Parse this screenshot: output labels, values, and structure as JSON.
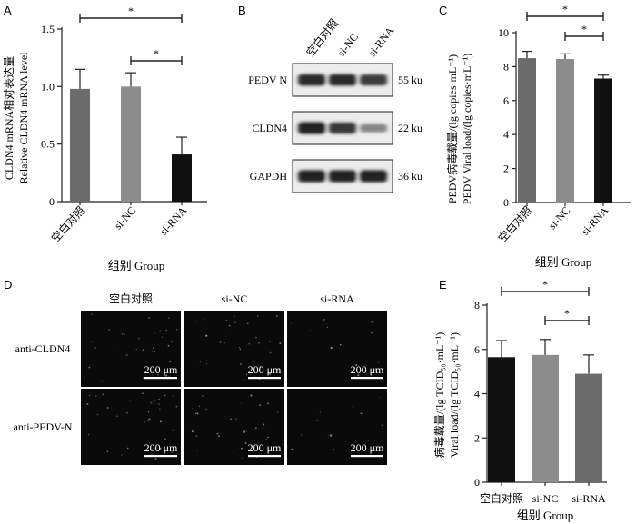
{
  "figure": {
    "panels": [
      "A",
      "B",
      "C",
      "D",
      "E"
    ]
  },
  "panel_a": {
    "ylabel_cn": "CLDN4 mRNA相对表达量",
    "ylabel_en": "Relative CLDN4 mRNA level",
    "xlabel": "组别 Group"
  },
  "panel_b": {
    "lanes": [
      "空白对照",
      "si-NC",
      "si-RNA"
    ],
    "rows": [
      {
        "label": "PEDV N",
        "size": "55 ku",
        "intensity": [
          0.85,
          0.85,
          0.78
        ]
      },
      {
        "label": "CLDN4",
        "size": "22 ku",
        "intensity": [
          0.9,
          0.8,
          0.45
        ]
      },
      {
        "label": "GAPDH",
        "size": "36 ku",
        "intensity": [
          0.9,
          0.9,
          0.9
        ]
      }
    ]
  },
  "panel_c": {
    "ylabel_cn": "PEDV病毒载量/(lg copies·mL⁻¹)",
    "ylabel_en": "PEDV Viral load/(lg copies·mL⁻¹)",
    "xlabel": "组别 Group"
  },
  "panel_d": {
    "columns": [
      "空白对照",
      "si-NC",
      "si-RNA"
    ],
    "rows": [
      "anti-CLDN4",
      "anti-PEDV-N"
    ],
    "scale_bar": "200 μm"
  },
  "panel_e": {
    "ylabel_cn": "病毒载量/(lg TCID₅₀·mL⁻¹)",
    "ylabel_en": "Viral load/(lg TCID₅₀·mL⁻¹)",
    "xlabel": "组别 Group"
  },
  "chart_data": [
    {
      "panel": "A",
      "type": "bar",
      "categories": [
        "空白对照",
        "si-NC",
        "si-RNA"
      ],
      "values": [
        0.98,
        1.0,
        0.41
      ],
      "errors": [
        0.17,
        0.12,
        0.15
      ],
      "colors": [
        "#6b6b6b",
        "#8c8c8c",
        "#111111"
      ],
      "ylim": [
        0,
        1.5
      ],
      "yticks": [
        0,
        0.5,
        1.0,
        1.5
      ],
      "ytick_labels": [
        "0",
        "0.5",
        "1.0",
        "1.5"
      ],
      "significance": [
        {
          "from": 0,
          "to": 2,
          "label": "*"
        },
        {
          "from": 1,
          "to": 2,
          "label": "*"
        }
      ]
    },
    {
      "panel": "C",
      "type": "bar",
      "categories": [
        "空白对照",
        "si-NC",
        "si-RNA"
      ],
      "values": [
        8.5,
        8.45,
        7.3
      ],
      "errors": [
        0.4,
        0.3,
        0.2
      ],
      "colors": [
        "#6b6b6b",
        "#8c8c8c",
        "#111111"
      ],
      "ylim": [
        0,
        10
      ],
      "yticks": [
        0,
        2,
        4,
        6,
        8,
        10
      ],
      "ytick_labels": [
        "0",
        "2",
        "4",
        "6",
        "8",
        "10"
      ],
      "significance": [
        {
          "from": 0,
          "to": 2,
          "label": "*"
        },
        {
          "from": 1,
          "to": 2,
          "label": "*"
        }
      ]
    },
    {
      "panel": "E",
      "type": "bar",
      "categories": [
        "空白对照",
        "si-NC",
        "si-RNA"
      ],
      "values": [
        5.65,
        5.75,
        4.9
      ],
      "errors": [
        0.75,
        0.7,
        0.85
      ],
      "colors": [
        "#111111",
        "#8c8c8c",
        "#6b6b6b"
      ],
      "ylim": [
        0,
        8
      ],
      "yticks": [
        0,
        2,
        4,
        6,
        8
      ],
      "ytick_labels": [
        "0",
        "2",
        "4",
        "6",
        "8"
      ],
      "significance": [
        {
          "from": 0,
          "to": 2,
          "label": "*"
        },
        {
          "from": 1,
          "to": 2,
          "label": "*"
        }
      ]
    }
  ]
}
